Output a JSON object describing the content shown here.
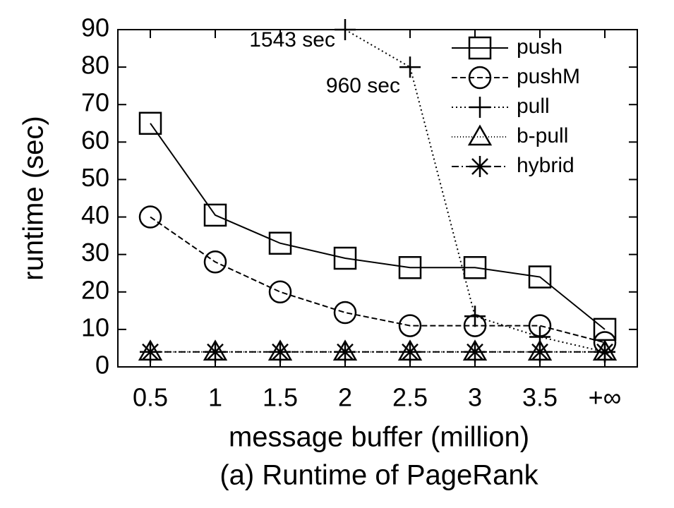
{
  "chart_data": {
    "type": "line",
    "xlabel": "message buffer (million)",
    "ylabel": "runtime (sec)",
    "caption": "(a) Runtime of PageRank",
    "categories": [
      "0.5",
      "1",
      "1.5",
      "2",
      "2.5",
      "3",
      "3.5",
      "+∞"
    ],
    "series": [
      {
        "name": "push",
        "color": "#000000",
        "marker": "square",
        "dash": "solid",
        "values": [
          65,
          40.5,
          33,
          29,
          26.5,
          26.5,
          24,
          10
        ]
      },
      {
        "name": "pushM",
        "color": "#000000",
        "marker": "circle",
        "dash": "dashed",
        "values": [
          40,
          28,
          20,
          14.5,
          11,
          11,
          11,
          6.5
        ]
      },
      {
        "name": "pull",
        "color": "#000000",
        "marker": "plus",
        "dash": "dotted",
        "values": [
          null,
          null,
          null,
          90,
          80,
          13.5,
          8,
          4
        ]
      },
      {
        "name": "b-pull",
        "color": "#000000",
        "marker": "triangle",
        "dash": "finedotted",
        "values": [
          4,
          4,
          4,
          4,
          4,
          4,
          4,
          4
        ]
      },
      {
        "name": "hybrid",
        "color": "#000000",
        "marker": "star",
        "dash": "dashdot",
        "values": [
          4,
          4,
          4,
          4,
          4,
          4,
          4,
          4
        ]
      }
    ],
    "annotations": [
      "1543 sec",
      "960 sec"
    ],
    "ylim": [
      0,
      90
    ],
    "yticks": [
      0,
      10,
      20,
      30,
      40,
      50,
      60,
      70,
      80,
      90
    ],
    "legend": "upper right",
    "grid": false
  }
}
